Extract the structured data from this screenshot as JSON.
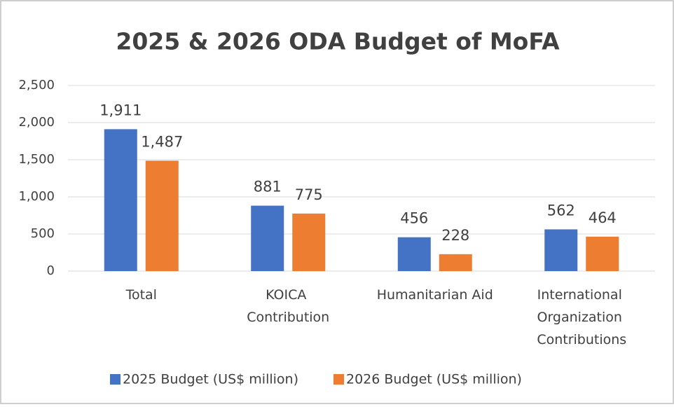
{
  "chart_data": {
    "type": "bar",
    "title": "2025 & 2026 ODA Budget of MoFA",
    "categories": [
      "Total",
      "KOICA Contribution",
      "Humanitarian Aid",
      "International Organization Contributions"
    ],
    "series": [
      {
        "name": "2025 Budget (US$ million)",
        "color": "#4472c4",
        "values": [
          1911,
          881,
          456,
          562
        ],
        "value_labels": [
          "1,911",
          "881",
          "456",
          "562"
        ]
      },
      {
        "name": "2026 Budget (US$ million)",
        "color": "#ed7d31",
        "values": [
          1487,
          775,
          228,
          464
        ],
        "value_labels": [
          "1,487",
          "775",
          "228",
          "464"
        ]
      }
    ],
    "ylim": [
      0,
      2500
    ],
    "yticks": [
      0,
      500,
      {
        "value": 1000,
        "label": "1,000"
      },
      {
        "value": 1500,
        "label": "1,500"
      },
      {
        "value": 2000,
        "label": "2,000"
      },
      {
        "value": 2500,
        "label": "2,500"
      }
    ],
    "grid": true,
    "legend": "bottom"
  }
}
